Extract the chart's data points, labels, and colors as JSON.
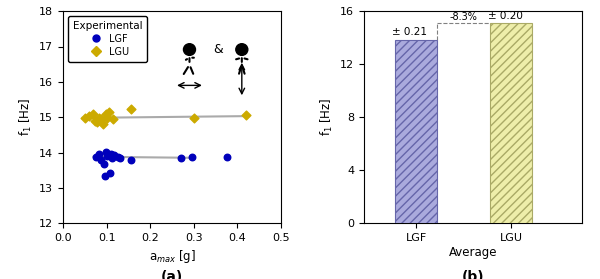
{
  "lgf_x": [
    0.075,
    0.082,
    0.088,
    0.093,
    0.097,
    0.098,
    0.102,
    0.107,
    0.11,
    0.112,
    0.118,
    0.125,
    0.13,
    0.155,
    0.27,
    0.295,
    0.375
  ],
  "lgf_y": [
    13.88,
    13.97,
    13.8,
    13.68,
    13.33,
    14.02,
    13.9,
    13.42,
    13.97,
    13.84,
    13.92,
    13.87,
    13.84,
    13.8,
    13.84,
    13.87,
    13.87
  ],
  "lgu_x": [
    0.05,
    0.06,
    0.068,
    0.073,
    0.078,
    0.082,
    0.088,
    0.092,
    0.098,
    0.1,
    0.105,
    0.115,
    0.155,
    0.3,
    0.42
  ],
  "lgu_y": [
    14.97,
    15.04,
    15.1,
    14.9,
    14.85,
    14.97,
    14.94,
    14.8,
    15.1,
    14.97,
    15.14,
    14.94,
    15.24,
    14.97,
    15.07
  ],
  "lgf_trend_x": [
    0.07,
    0.3
  ],
  "lgf_trend_y": [
    13.88,
    13.85
  ],
  "lgu_trend_x": [
    0.045,
    0.42
  ],
  "lgu_trend_y": [
    14.98,
    15.03
  ],
  "bar_lgf_val": 13.84,
  "bar_lgu_val": 15.08,
  "lgf_bar_face": "#aaaadd",
  "lgf_bar_edge": "#6666aa",
  "lgu_bar_face": "#eeeeaa",
  "lgu_bar_edge": "#aaaa66",
  "lgf_scatter_color": "#0000bb",
  "lgu_scatter_color": "#ccaa00",
  "trend_color": "#aaaaaa",
  "xlim_a": [
    0,
    0.5
  ],
  "ylim_a": [
    12,
    18
  ],
  "ylim_b": [
    0,
    16
  ],
  "xlabel_a": "a$_{max}$ [g]",
  "ylabel": "f$_1$ [Hz]",
  "percent_diff": "-8.3%",
  "lgf_avg_label": "± 0.21",
  "lgu_avg_label": "± 0.20",
  "label_a": "(a)",
  "label_b": "(b)"
}
